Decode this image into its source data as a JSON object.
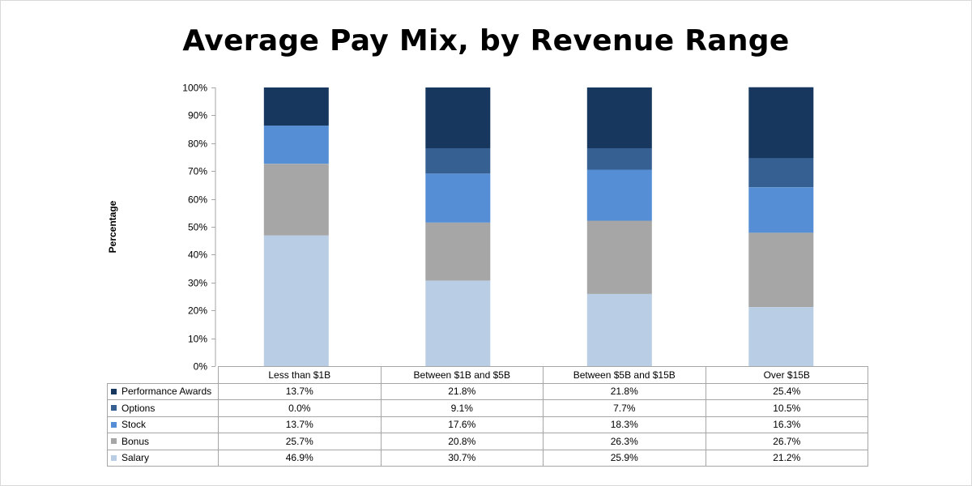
{
  "chart_data": {
    "type": "bar",
    "stacked": true,
    "title": "Average Pay Mix, by Revenue Range",
    "ylabel": "Percentage",
    "xlabel": "",
    "ylim": [
      0,
      100
    ],
    "yticks": [
      "0%",
      "10%",
      "20%",
      "30%",
      "40%",
      "50%",
      "60%",
      "70%",
      "80%",
      "90%",
      "100%"
    ],
    "categories": [
      "Less than $1B",
      "Between $1B and $5B",
      "Between $5B and $15B",
      "Over $15B"
    ],
    "series": [
      {
        "name": "Salary",
        "color": "#b9cde4",
        "values": [
          46.9,
          30.7,
          25.9,
          21.2
        ],
        "labels": [
          "46.9%",
          "30.7%",
          "25.9%",
          "21.2%"
        ]
      },
      {
        "name": "Bonus",
        "color": "#a6a6a6",
        "values": [
          25.7,
          20.8,
          26.3,
          26.7
        ],
        "labels": [
          "25.7%",
          "20.8%",
          "26.3%",
          "26.7%"
        ]
      },
      {
        "name": "Stock",
        "color": "#558ed5",
        "values": [
          13.7,
          17.6,
          18.3,
          16.3
        ],
        "labels": [
          "13.7%",
          "17.6%",
          "18.3%",
          "16.3%"
        ]
      },
      {
        "name": "Options",
        "color": "#366092",
        "values": [
          0.0,
          9.1,
          7.7,
          10.5
        ],
        "labels": [
          "0.0%",
          "9.1%",
          "7.7%",
          "10.5%"
        ]
      },
      {
        "name": "Performance Awards",
        "color": "#17375e",
        "values": [
          13.7,
          21.8,
          21.8,
          25.4
        ],
        "labels": [
          "13.7%",
          "21.8%",
          "21.8%",
          "25.4%"
        ]
      }
    ],
    "grid": false,
    "legend": "data-table"
  }
}
